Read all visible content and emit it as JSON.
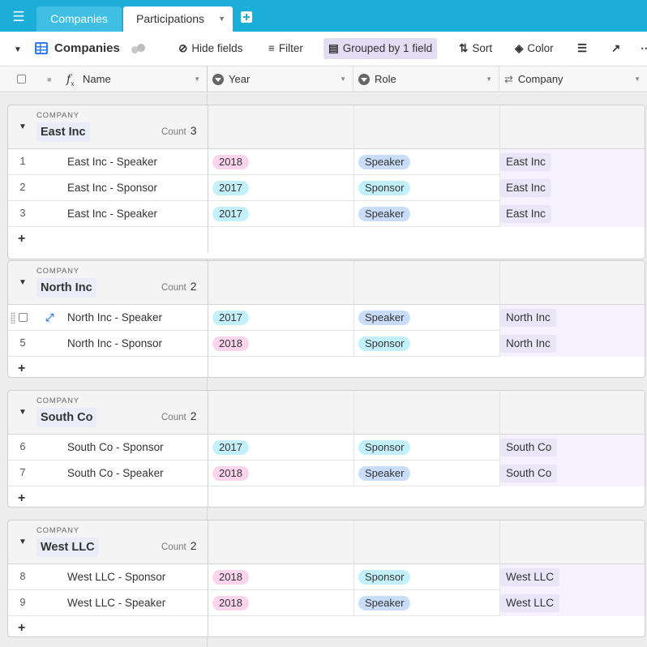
{
  "tabs": [
    {
      "label": "Companies",
      "active": false
    },
    {
      "label": "Participations",
      "active": true
    }
  ],
  "toolbar": {
    "view_name": "Companies",
    "hide_fields": "Hide fields",
    "filter": "Filter",
    "grouped": "Grouped by 1 field",
    "sort": "Sort",
    "color": "Color"
  },
  "columns": {
    "name": "Name",
    "year": "Year",
    "role": "Role",
    "company": "Company"
  },
  "colors": {
    "topbar": "#1aaed8",
    "year_2018": "#fcd4ec",
    "year_2017": "#c3f1fb",
    "role_speaker": "#c9dcf8",
    "role_sponsor": "#c3f1fb",
    "grouped_highlight": "#e3dcf3"
  },
  "groups": [
    {
      "field_label": "COMPANY",
      "name": "East Inc",
      "count_label": "Count",
      "count": "3",
      "rows": [
        {
          "num": "1",
          "name": "East Inc - Speaker",
          "year": "2018",
          "role": "Speaker",
          "company": "East Inc"
        },
        {
          "num": "2",
          "name": "East Inc - Sponsor",
          "year": "2017",
          "role": "Sponsor",
          "company": "East Inc"
        },
        {
          "num": "3",
          "name": "East Inc - Speaker",
          "year": "2017",
          "role": "Speaker",
          "company": "East Inc"
        }
      ]
    },
    {
      "field_label": "COMPANY",
      "name": "North Inc",
      "count_label": "Count",
      "count": "2",
      "rows": [
        {
          "num": "",
          "name": "North Inc - Speaker",
          "year": "2017",
          "role": "Speaker",
          "company": "North Inc"
        },
        {
          "num": "5",
          "name": "North Inc - Sponsor",
          "year": "2018",
          "role": "Sponsor",
          "company": "North Inc"
        }
      ]
    },
    {
      "field_label": "COMPANY",
      "name": "South Co",
      "count_label": "Count",
      "count": "2",
      "rows": [
        {
          "num": "6",
          "name": "South Co - Sponsor",
          "year": "2017",
          "role": "Sponsor",
          "company": "South Co"
        },
        {
          "num": "7",
          "name": "South Co - Speaker",
          "year": "2018",
          "role": "Speaker",
          "company": "South Co"
        }
      ]
    },
    {
      "field_label": "COMPANY",
      "name": "West LLC",
      "count_label": "Count",
      "count": "2",
      "rows": [
        {
          "num": "8",
          "name": "West LLC - Sponsor",
          "year": "2018",
          "role": "Sponsor",
          "company": "West LLC"
        },
        {
          "num": "9",
          "name": "West LLC - Speaker",
          "year": "2018",
          "role": "Speaker",
          "company": "West LLC"
        }
      ]
    }
  ]
}
